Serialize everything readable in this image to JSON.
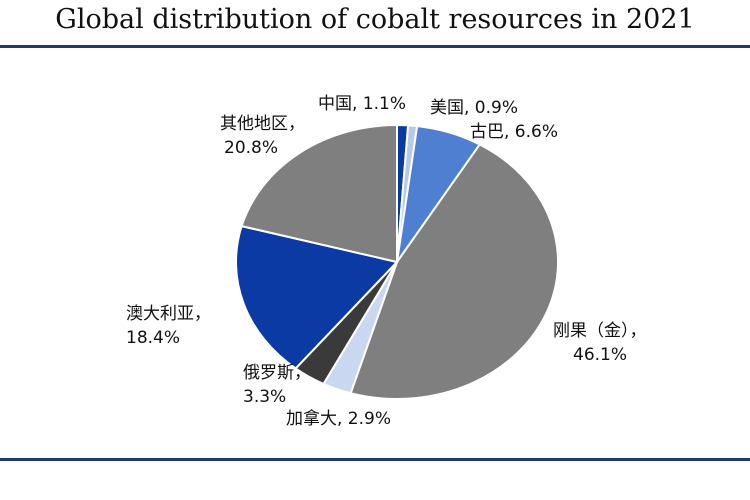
{
  "title": "Global distribution of cobalt resources in 2021",
  "chart_data": {
    "type": "pie",
    "title": "Global distribution of cobalt resources in 2021",
    "slices": [
      {
        "label": "中国",
        "value": 1.1,
        "value_label": "1.1%",
        "color": "#0a3aa0",
        "label_style": "inline"
      },
      {
        "label": "美国",
        "value": 0.9,
        "value_label": "0.9%",
        "color": "#b8c9e8",
        "label_style": "inline"
      },
      {
        "label": "古巴",
        "value": 6.6,
        "value_label": "6.6%",
        "color": "#4f7fd0",
        "label_style": "inline"
      },
      {
        "label": "刚果（金）",
        "value": 46.1,
        "value_label": "46.1%",
        "color": "#7f7f7f",
        "label_style": "stacked"
      },
      {
        "label": "加拿大",
        "value": 2.9,
        "value_label": "2.9%",
        "color": "#c9d8f0",
        "label_style": "inline"
      },
      {
        "label": "俄罗斯",
        "value": 3.3,
        "value_label": "3.3%",
        "color": "#3a3a3a",
        "label_style": "stacked"
      },
      {
        "label": "澳大利亚",
        "value": 18.4,
        "value_label": "18.4%",
        "color": "#0b3aa5",
        "label_style": "stacked"
      },
      {
        "label": "其他地区",
        "value": 20.8,
        "value_label": "20.8%",
        "color": "#7f7f7f",
        "label_style": "stacked"
      }
    ],
    "legend": "none"
  }
}
